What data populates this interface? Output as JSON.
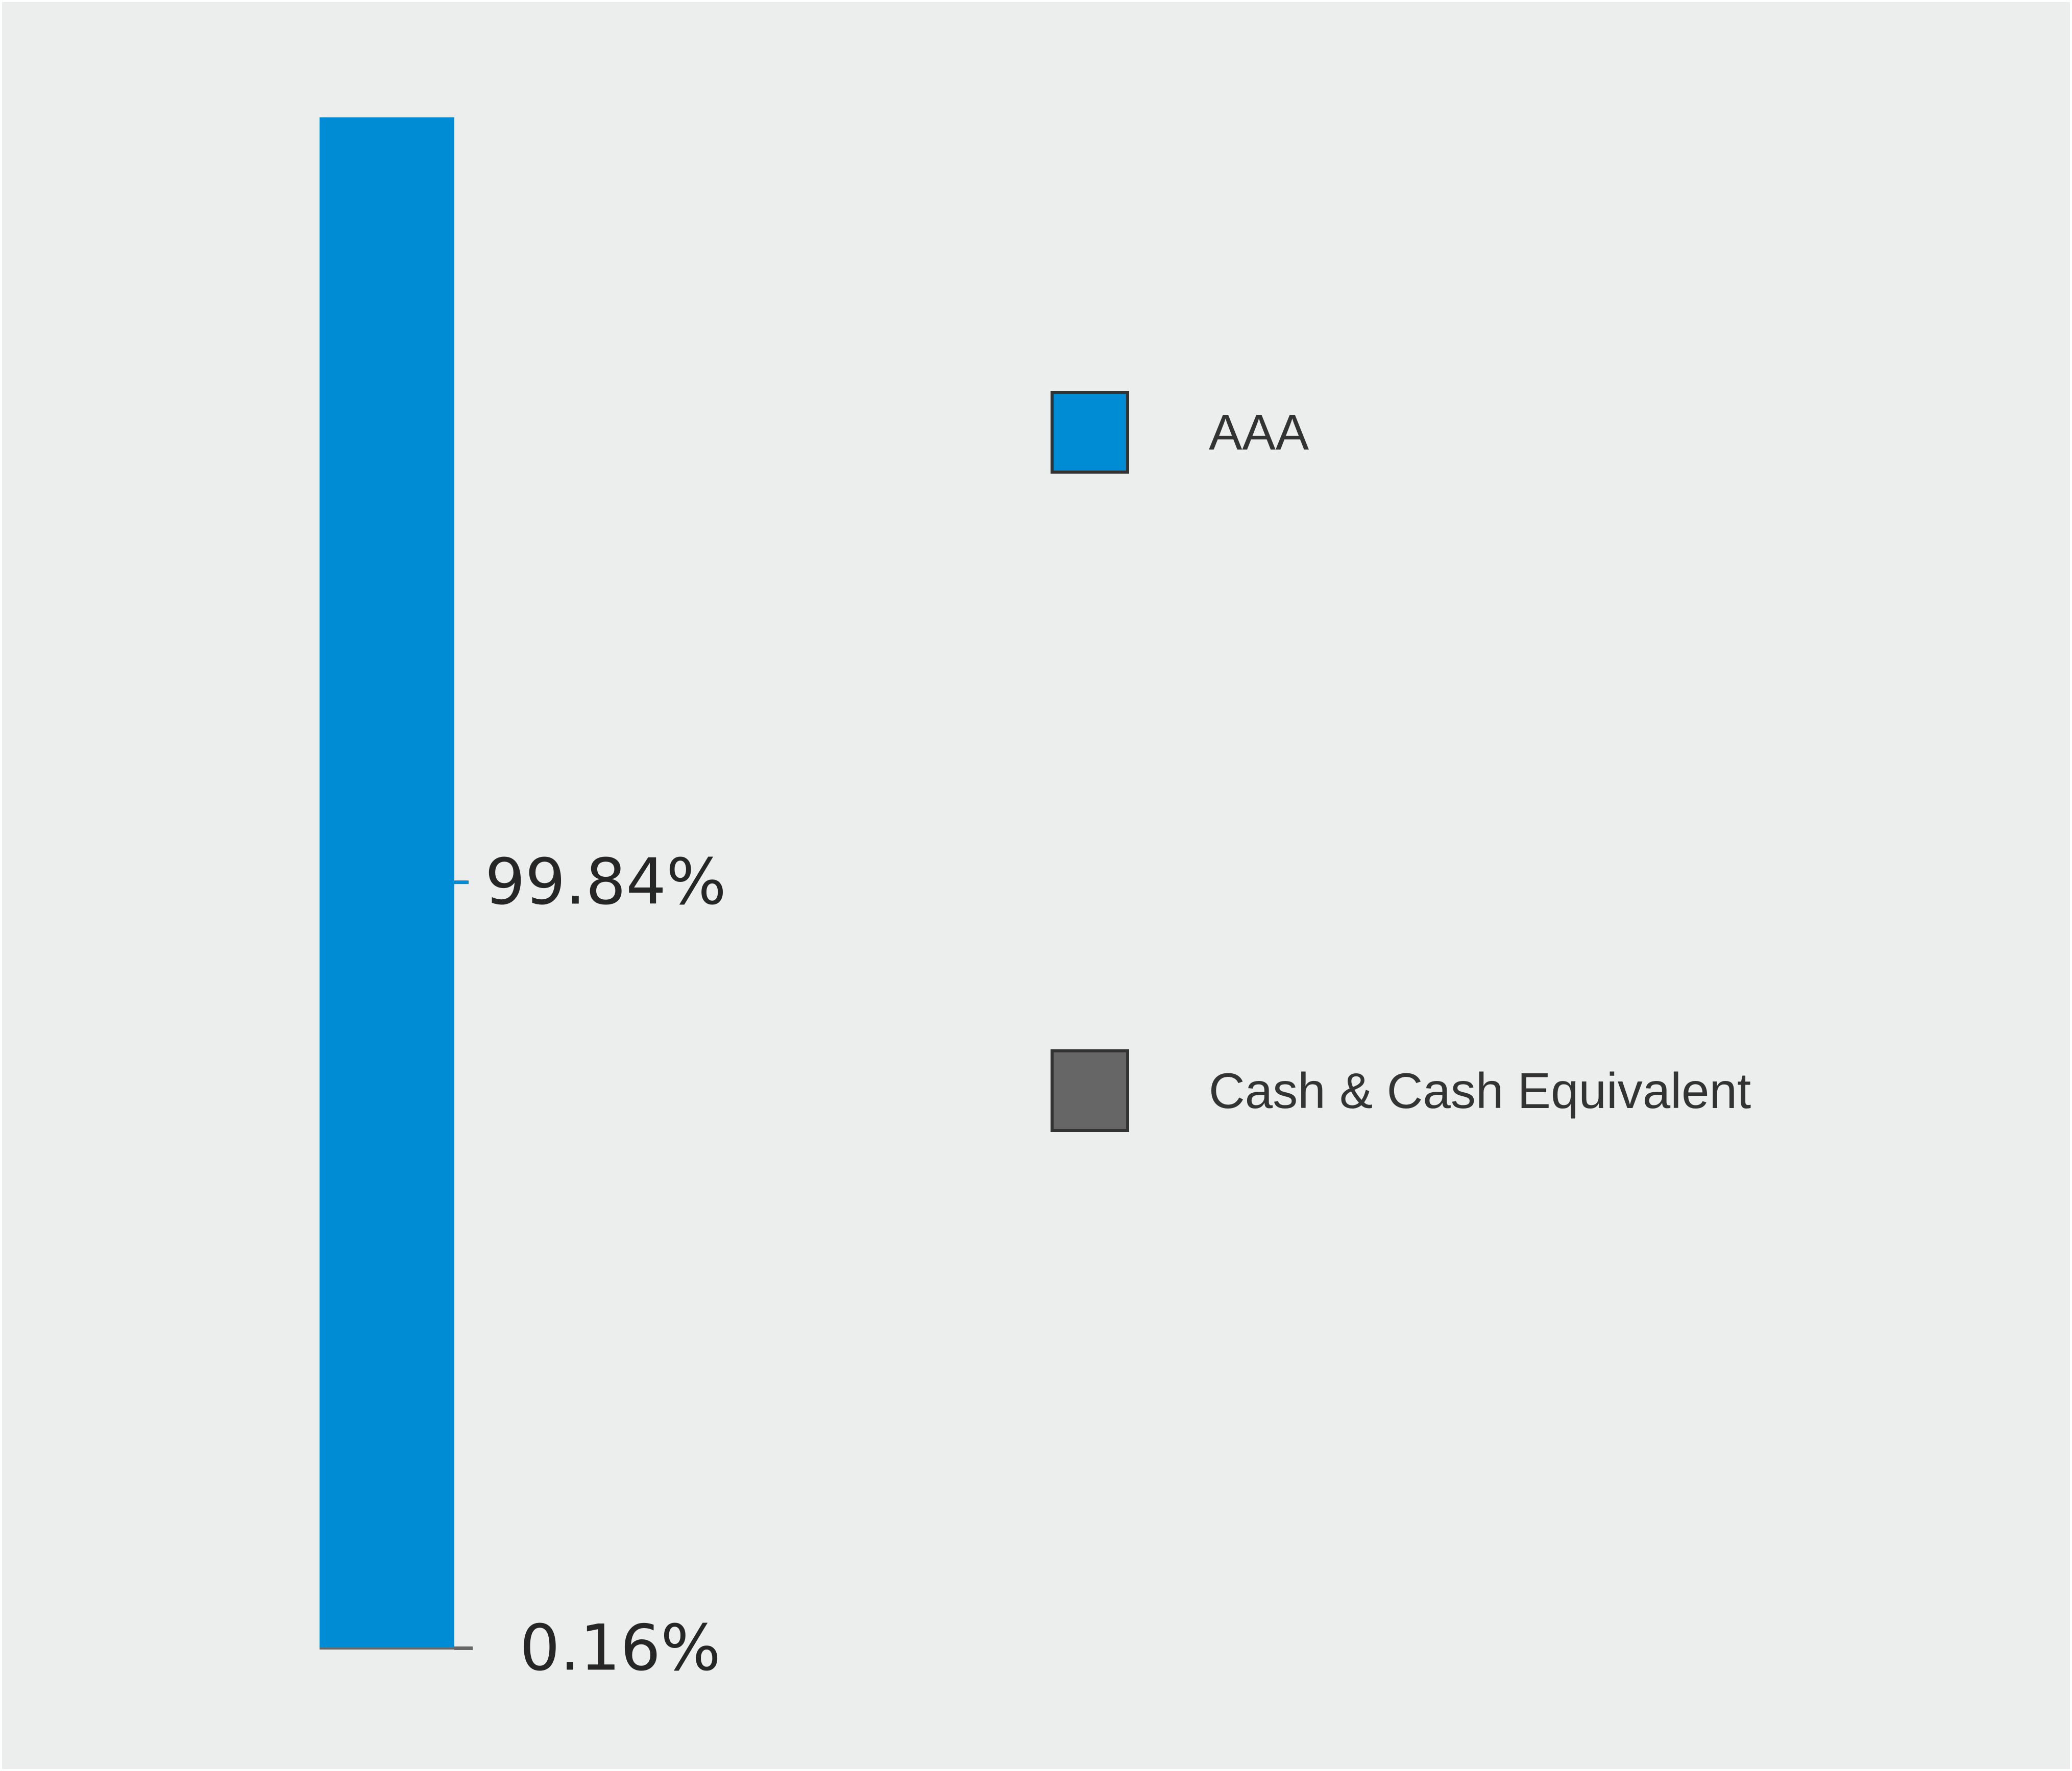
{
  "chart_data": {
    "type": "bar",
    "stacked": true,
    "orientation": "vertical",
    "categories": [
      ""
    ],
    "series": [
      {
        "name": "AAA",
        "values": [
          99.84
        ],
        "color": "#008bd5",
        "label": "99.84%"
      },
      {
        "name": "Cash & Cash Equivalent",
        "values": [
          0.16
        ],
        "color": "#666666",
        "label": "0.16%"
      }
    ],
    "ylim": [
      0,
      100
    ],
    "grid": false,
    "legend_position": "right"
  }
}
